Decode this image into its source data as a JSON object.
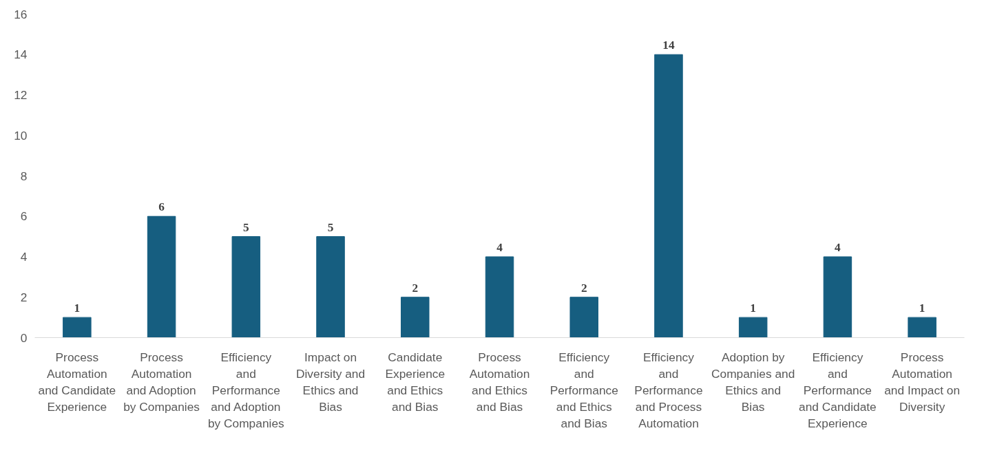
{
  "chart_data": {
    "type": "bar",
    "categories": [
      "Process Automation and Candidate Experience",
      "Process Automation and Adoption by Companies",
      "Efficiency and Performance and Adoption by Companies",
      "Impact on Diversity and Ethics and Bias",
      "Candidate Experience and Ethics and Bias",
      "Process Automation and Ethics and Bias",
      "Efficiency and Performance and Ethics and Bias",
      "Efficiency and Performance and Process Automation",
      "Adoption by Companies and Ethics and Bias",
      "Efficiency and Performance and Candidate Experience",
      "Process Automation and Impact on Diversity"
    ],
    "values": [
      1,
      6,
      5,
      5,
      2,
      4,
      2,
      14,
      1,
      4,
      1
    ],
    "color": "#165e80",
    "ylim": [
      0,
      16
    ],
    "yticks": [
      0,
      2,
      4,
      6,
      8,
      10,
      12,
      14,
      16
    ],
    "grid": false,
    "data_labels": true
  }
}
